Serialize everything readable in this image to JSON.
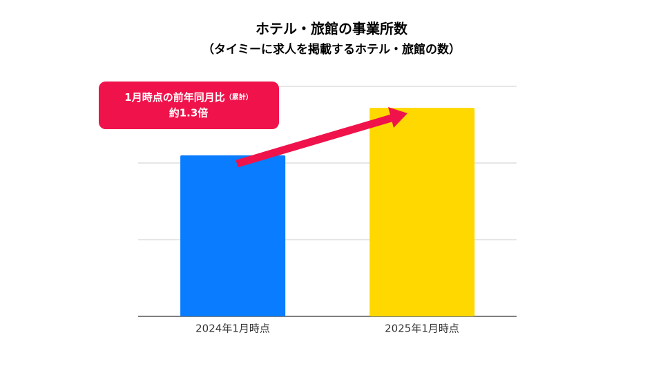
{
  "chart_data": {
    "type": "bar",
    "title": "ホテル・旅館の事業所数",
    "subtitle": "（タイミーに求人を掲載するホテル・旅館の数）",
    "categories": [
      "2024年1月時点",
      "2025年1月時点"
    ],
    "values": [
      2.1,
      2.72
    ],
    "colors": [
      "#0a7cff",
      "#ffd800"
    ],
    "ylim": [
      0,
      3
    ],
    "yticks": [
      0,
      1,
      2,
      3
    ],
    "grid": true,
    "annotation": {
      "text": "1月時点の前年同月比",
      "note": "（累計）",
      "value": "約1.3倍"
    }
  }
}
